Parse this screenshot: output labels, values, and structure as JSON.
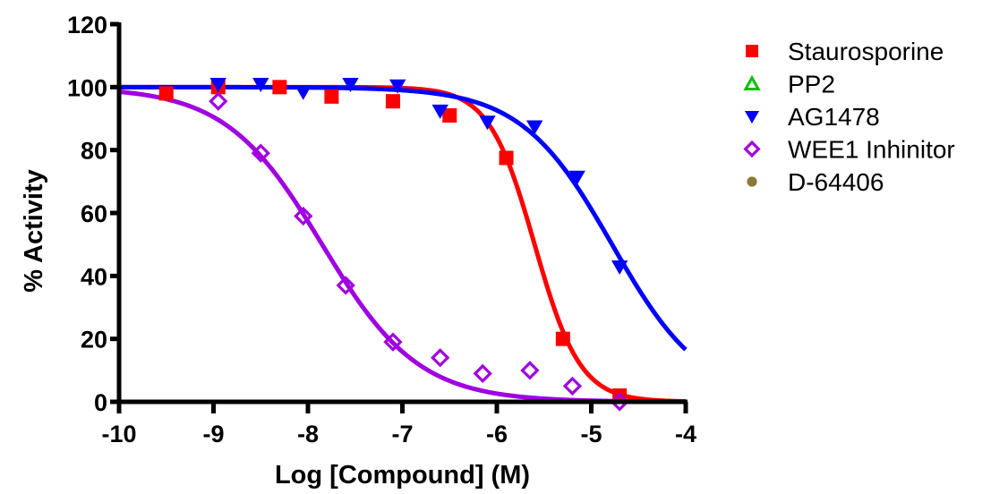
{
  "chart_data": {
    "type": "scatter",
    "title": "",
    "xlabel": "Log [Compound] (M)",
    "ylabel": "% Activity",
    "xlim": [
      -10,
      -4
    ],
    "ylim": [
      0,
      120
    ],
    "x_ticks": [
      -10,
      -9,
      -8,
      -7,
      -6,
      -5,
      -4
    ],
    "x_tick_labels": [
      "-10",
      "-9",
      "-8",
      "-7",
      "-6",
      "-5",
      "-4"
    ],
    "y_ticks": [
      0,
      20,
      40,
      60,
      80,
      100,
      120
    ],
    "y_tick_labels": [
      "0",
      "20",
      "40",
      "60",
      "80",
      "100",
      "120"
    ],
    "grid": false,
    "legend_position": "right",
    "series": [
      {
        "name": "Staurosporine",
        "color": "#ff0000",
        "marker": "square-filled",
        "x": [
          -9.5,
          -8.95,
          -8.3,
          -7.75,
          -7.1,
          -6.5,
          -5.9,
          -5.3,
          -4.7
        ],
        "y": [
          98,
          100,
          100,
          97,
          95.5,
          91,
          77.5,
          20,
          2
        ],
        "fit": {
          "top": 100,
          "bottom": 0,
          "log_ic50": -5.6,
          "hill": 1.8
        }
      },
      {
        "name": "PP2",
        "color": "#00c000",
        "marker": "triangle-up-open",
        "x": [],
        "y": [],
        "fit": null
      },
      {
        "name": "AG1478",
        "color": "#0000ff",
        "marker": "triangle-down-filled",
        "x": [
          -8.95,
          -8.5,
          -8.05,
          -7.55,
          -7.05,
          -6.6,
          -6.1,
          -5.6,
          -5.15,
          -4.7
        ],
        "y": [
          101,
          101,
          98.5,
          101,
          100.5,
          92.5,
          89,
          87.5,
          71.5,
          43
        ],
        "fit": {
          "top": 100,
          "bottom": 0,
          "log_ic50": -4.78,
          "hill": 0.9
        }
      },
      {
        "name": "WEE1 Inhinitor",
        "color": "#a000e0",
        "marker": "diamond-open",
        "x": [
          -8.95,
          -8.5,
          -8.05,
          -7.6,
          -7.1,
          -6.6,
          -6.15,
          -5.65,
          -5.2,
          -4.7
        ],
        "y": [
          95.5,
          79,
          59,
          37,
          19,
          14,
          9,
          10,
          5,
          0
        ],
        "fit": {
          "top": 100,
          "bottom": 0,
          "log_ic50": -7.85,
          "hill": 0.85
        }
      },
      {
        "name": "D-64406",
        "color": "#8b7a3a",
        "marker": "circle-filled",
        "x": [],
        "y": [],
        "fit": null
      }
    ]
  }
}
